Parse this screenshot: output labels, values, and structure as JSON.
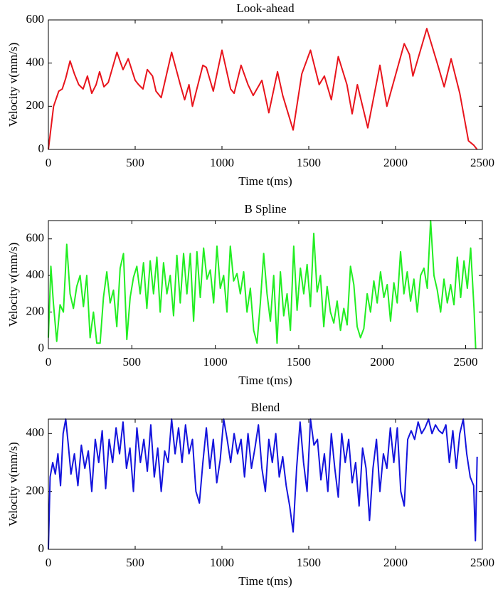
{
  "chart_data": [
    {
      "type": "line",
      "title": "Look-ahead",
      "xlabel": "Time t(ms)",
      "ylabel": "Velocity v(mm/s)",
      "xlim": [
        0,
        2500
      ],
      "xticks": [
        0,
        500,
        1000,
        1500,
        2000,
        2500
      ],
      "ylim": [
        0,
        600
      ],
      "yticks": [
        0,
        200,
        400,
        600
      ],
      "x": [
        0,
        30,
        60,
        80,
        100,
        125,
        150,
        175,
        200,
        225,
        250,
        275,
        295,
        320,
        345,
        395,
        430,
        460,
        500,
        520,
        545,
        570,
        600,
        620,
        650,
        710,
        760,
        785,
        810,
        830,
        890,
        910,
        950,
        1000,
        1050,
        1070,
        1110,
        1150,
        1180,
        1230,
        1270,
        1320,
        1350,
        1410,
        1460,
        1510,
        1560,
        1590,
        1630,
        1670,
        1720,
        1750,
        1780,
        1840,
        1910,
        1950,
        2050,
        2080,
        2100,
        2180,
        2240,
        2280,
        2320,
        2370,
        2420,
        2450,
        2470
      ],
      "series": [
        {
          "color": "#e8141c",
          "values": [
            0,
            200,
            270,
            280,
            330,
            410,
            350,
            300,
            280,
            340,
            260,
            300,
            360,
            290,
            310,
            450,
            370,
            420,
            320,
            300,
            280,
            370,
            340,
            270,
            240,
            450,
            300,
            230,
            300,
            200,
            390,
            380,
            270,
            460,
            280,
            260,
            390,
            300,
            250,
            320,
            170,
            360,
            250,
            90,
            350,
            460,
            300,
            340,
            230,
            430,
            300,
            165,
            300,
            100,
            390,
            200,
            490,
            440,
            340,
            560,
            400,
            290,
            420,
            260,
            40,
            20,
            0
          ]
        }
      ]
    },
    {
      "type": "line",
      "title": "B Spline",
      "xlabel": "Time t(ms)",
      "ylabel": "Velocity v(mm/s)",
      "xlim": [
        0,
        2600
      ],
      "xticks": [
        0,
        500,
        1000,
        1500,
        2000,
        2500
      ],
      "ylim": [
        0,
        700
      ],
      "yticks": [
        0,
        200,
        400,
        600
      ],
      "x": [
        0,
        15,
        30,
        50,
        70,
        90,
        110,
        130,
        150,
        170,
        190,
        210,
        230,
        250,
        270,
        290,
        310,
        330,
        350,
        370,
        390,
        410,
        430,
        450,
        470,
        490,
        510,
        530,
        550,
        570,
        590,
        610,
        630,
        650,
        670,
        690,
        710,
        730,
        750,
        770,
        790,
        810,
        830,
        850,
        870,
        890,
        910,
        930,
        950,
        970,
        990,
        1010,
        1030,
        1050,
        1070,
        1090,
        1110,
        1130,
        1150,
        1170,
        1190,
        1210,
        1230,
        1250,
        1270,
        1290,
        1310,
        1330,
        1350,
        1370,
        1390,
        1410,
        1430,
        1450,
        1470,
        1490,
        1510,
        1530,
        1550,
        1570,
        1590,
        1610,
        1630,
        1650,
        1670,
        1690,
        1710,
        1730,
        1750,
        1770,
        1790,
        1810,
        1830,
        1850,
        1870,
        1890,
        1910,
        1930,
        1950,
        1970,
        1990,
        2010,
        2030,
        2050,
        2070,
        2090,
        2110,
        2130,
        2150,
        2170,
        2190,
        2210,
        2230,
        2250,
        2270,
        2290,
        2310,
        2330,
        2350,
        2370,
        2390,
        2410,
        2430,
        2450,
        2470,
        2490,
        2510,
        2530,
        2550,
        2560
      ],
      "series": [
        {
          "color": "#22ee22",
          "values": [
            60,
            450,
            250,
            40,
            240,
            200,
            570,
            300,
            220,
            340,
            400,
            230,
            400,
            60,
            200,
            30,
            30,
            280,
            420,
            250,
            320,
            120,
            440,
            520,
            50,
            280,
            390,
            450,
            300,
            470,
            220,
            480,
            300,
            500,
            200,
            470,
            300,
            400,
            180,
            510,
            250,
            520,
            300,
            520,
            150,
            530,
            280,
            550,
            380,
            430,
            250,
            560,
            330,
            400,
            200,
            560,
            370,
            410,
            300,
            420,
            200,
            330,
            100,
            30,
            250,
            520,
            300,
            150,
            400,
            30,
            420,
            180,
            300,
            100,
            560,
            210,
            440,
            300,
            460,
            230,
            630,
            310,
            400,
            120,
            340,
            200,
            140,
            260,
            100,
            220,
            130,
            450,
            350,
            120,
            60,
            110,
            300,
            200,
            370,
            250,
            420,
            280,
            350,
            150,
            360,
            250,
            530,
            300,
            420,
            260,
            380,
            200,
            400,
            440,
            330,
            700,
            400,
            320,
            200,
            380,
            250,
            350,
            240,
            500,
            280,
            480,
            330,
            550,
            220,
            0
          ]
        }
      ]
    },
    {
      "type": "line",
      "title": "Blend",
      "xlabel": "Time t(ms)",
      "ylabel": "Velocity v(mm/s)",
      "xlim": [
        0,
        2500
      ],
      "xticks": [
        0,
        500,
        1000,
        1500,
        2000,
        2500
      ],
      "ylim": [
        0,
        450
      ],
      "yticks": [
        0,
        200,
        400
      ],
      "x": [
        0,
        10,
        25,
        40,
        55,
        70,
        85,
        100,
        115,
        130,
        150,
        170,
        190,
        210,
        230,
        250,
        270,
        290,
        310,
        330,
        350,
        370,
        390,
        410,
        430,
        450,
        470,
        490,
        510,
        530,
        550,
        570,
        590,
        610,
        630,
        650,
        670,
        690,
        710,
        730,
        750,
        770,
        790,
        810,
        830,
        850,
        870,
        890,
        910,
        930,
        950,
        970,
        990,
        1010,
        1030,
        1050,
        1070,
        1090,
        1110,
        1130,
        1150,
        1170,
        1190,
        1210,
        1230,
        1250,
        1270,
        1290,
        1310,
        1330,
        1350,
        1370,
        1390,
        1410,
        1430,
        1450,
        1470,
        1490,
        1510,
        1530,
        1550,
        1570,
        1590,
        1610,
        1630,
        1650,
        1670,
        1690,
        1710,
        1730,
        1750,
        1770,
        1790,
        1810,
        1830,
        1850,
        1870,
        1890,
        1910,
        1930,
        1950,
        1970,
        1990,
        2010,
        2030,
        2050,
        2070,
        2090,
        2110,
        2130,
        2150,
        2170,
        2190,
        2210,
        2230,
        2250,
        2270,
        2290,
        2310,
        2330,
        2350,
        2370,
        2390,
        2410,
        2430,
        2450,
        2460,
        2470
      ],
      "series": [
        {
          "color": "#1414dd",
          "values": [
            0,
            250,
            300,
            260,
            330,
            220,
            400,
            450,
            360,
            260,
            330,
            220,
            360,
            280,
            340,
            200,
            380,
            300,
            410,
            210,
            380,
            300,
            420,
            330,
            440,
            280,
            350,
            200,
            420,
            300,
            380,
            270,
            430,
            250,
            350,
            200,
            340,
            300,
            450,
            330,
            420,
            300,
            430,
            330,
            380,
            200,
            160,
            300,
            420,
            280,
            380,
            230,
            310,
            450,
            380,
            300,
            400,
            330,
            380,
            250,
            400,
            280,
            350,
            430,
            280,
            200,
            380,
            300,
            400,
            250,
            320,
            220,
            150,
            60,
            280,
            440,
            300,
            200,
            450,
            360,
            380,
            240,
            330,
            200,
            400,
            280,
            180,
            400,
            300,
            380,
            230,
            300,
            150,
            350,
            280,
            100,
            280,
            380,
            200,
            330,
            280,
            420,
            300,
            420,
            200,
            150,
            380,
            410,
            380,
            440,
            400,
            420,
            450,
            400,
            430,
            410,
            400,
            430,
            300,
            410,
            280,
            400,
            450,
            330,
            250,
            220,
            30,
            320
          ]
        }
      ]
    }
  ]
}
